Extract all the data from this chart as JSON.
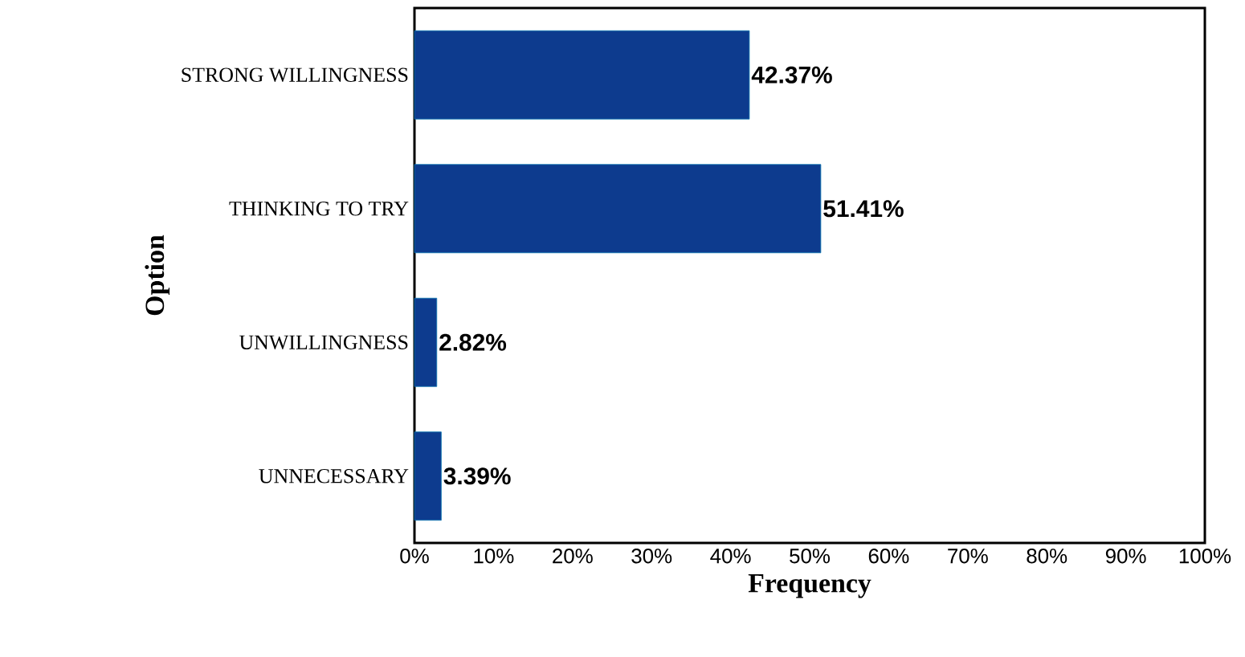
{
  "chart_data": {
    "type": "bar",
    "orientation": "horizontal",
    "xlabel": "Frequency",
    "ylabel": "Option",
    "categories": [
      "STRONG WILLINGNESS",
      "THINKING TO TRY",
      "UNWILLINGNESS",
      "UNNECESSARY"
    ],
    "values": [
      42.37,
      51.41,
      2.82,
      3.39
    ],
    "value_labels": [
      "42.37%",
      "51.41%",
      "2.82%",
      "3.39%"
    ],
    "color": "#0d3b8e",
    "xlim": [
      0,
      100
    ],
    "xticks": [
      {
        "value": 0,
        "label": "0%"
      },
      {
        "value": 10,
        "label": "10%"
      },
      {
        "value": 20,
        "label": "20%"
      },
      {
        "value": 30,
        "label": "30%"
      },
      {
        "value": 40,
        "label": "40%"
      },
      {
        "value": 50,
        "label": "50%"
      },
      {
        "value": 60,
        "label": "60%"
      },
      {
        "value": 70,
        "label": "70%"
      },
      {
        "value": 80,
        "label": "80%"
      },
      {
        "value": 90,
        "label": "90%"
      },
      {
        "value": 100,
        "label": "100%"
      }
    ],
    "grid": false
  }
}
